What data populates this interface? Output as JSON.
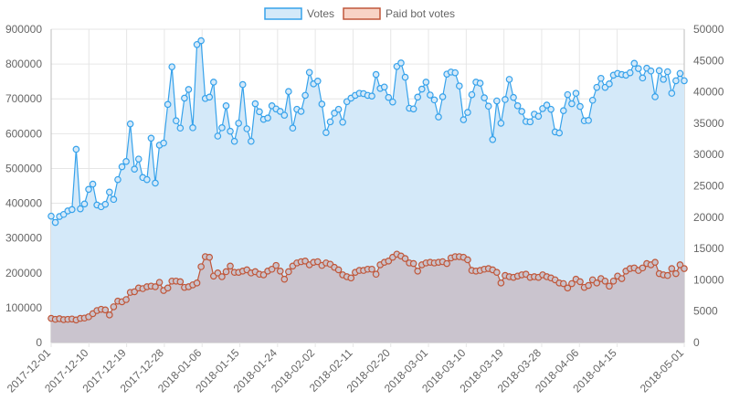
{
  "chart_data": {
    "type": "line",
    "x_dates": {
      "first": "2017-12-01",
      "last": "2018-05-01",
      "tick_labels": [
        "2017-12-01",
        "2017-12-10",
        "2017-12-19",
        "2017-12-28",
        "2018-01-06",
        "2018-01-15",
        "2018-01-24",
        "2018-02-02",
        "2018-02-11",
        "2018-02-20",
        "2018-03-01",
        "2018-03-10",
        "2018-03-19",
        "2018-03-28",
        "2018-04-06",
        "2018-04-15",
        "2018-05-01"
      ]
    },
    "y_left": {
      "min": 0,
      "max": 900000,
      "ticks": [
        0,
        100000,
        200000,
        300000,
        400000,
        500000,
        600000,
        700000,
        800000,
        900000
      ]
    },
    "y_right": {
      "min": 0,
      "max": 50000,
      "ticks": [
        0,
        5000,
        10000,
        15000,
        20000,
        25000,
        30000,
        35000,
        40000,
        45000,
        50000
      ]
    },
    "grid": true,
    "legend_position": "top",
    "series": [
      {
        "name": "Votes",
        "axis": "left",
        "line_color": "#36a2eb",
        "fill_color": "#d4e9f9",
        "values": [
          363000,
          345000,
          362000,
          368000,
          378000,
          382000,
          555000,
          384000,
          398000,
          440000,
          455000,
          395000,
          390000,
          397000,
          432000,
          411000,
          468000,
          505000,
          520000,
          628000,
          498000,
          527000,
          474000,
          468000,
          587000,
          458000,
          567000,
          573000,
          684000,
          792000,
          637000,
          616000,
          702000,
          727000,
          617000,
          856000,
          867000,
          701000,
          705000,
          748000,
          593000,
          617000,
          680000,
          607000,
          578000,
          630000,
          741000,
          614000,
          578000,
          686000,
          663000,
          641000,
          645000,
          680000,
          671000,
          664000,
          653000,
          721000,
          616000,
          670000,
          664000,
          710000,
          776000,
          743000,
          751000,
          685000,
          603000,
          634000,
          659000,
          670000,
          633000,
          692000,
          702000,
          710000,
          716000,
          715000,
          710000,
          708000,
          770000,
          730000,
          734000,
          704000,
          691000,
          793000,
          803000,
          762000,
          673000,
          671000,
          705000,
          728000,
          748000,
          711000,
          697000,
          648000,
          706000,
          771000,
          777000,
          775000,
          737000,
          640000,
          661000,
          712000,
          748000,
          745000,
          703000,
          679000,
          583000,
          694000,
          630000,
          698000,
          756000,
          704000,
          680000,
          664000,
          635000,
          634000,
          656000,
          650000,
          672000,
          682000,
          670000,
          605000,
          602000,
          666000,
          712000,
          686000,
          716000,
          678000,
          637000,
          638000,
          696000,
          733000,
          759000,
          733000,
          743000,
          768000,
          773000,
          770000,
          768000,
          775000,
          802000,
          787000,
          760000,
          788000,
          780000,
          706000,
          781000,
          756000,
          778000,
          716000,
          752000,
          773000,
          752000
        ]
      },
      {
        "name": "Paid bot votes",
        "axis": "right",
        "line_color": "#c0573a",
        "fill_color": "#c9c2cb",
        "values": [
          3850,
          3700,
          3800,
          3650,
          3700,
          3750,
          3600,
          3850,
          3900,
          4100,
          4600,
          5100,
          5300,
          5200,
          4400,
          5700,
          6600,
          6500,
          6850,
          8000,
          8100,
          8700,
          8600,
          8900,
          9000,
          8900,
          9600,
          8300,
          8700,
          9800,
          9800,
          9700,
          8800,
          8900,
          9200,
          9500,
          12100,
          13700,
          13600,
          10600,
          11100,
          10500,
          11300,
          12200,
          11200,
          11200,
          11400,
          11600,
          11100,
          11300,
          10900,
          10800,
          11400,
          11700,
          12300,
          11400,
          10100,
          11300,
          12200,
          12700,
          12900,
          13000,
          12400,
          12800,
          12900,
          12300,
          12700,
          12500,
          12000,
          11600,
          10800,
          10500,
          10300,
          11200,
          11500,
          11500,
          11700,
          11700,
          10900,
          12400,
          12800,
          13000,
          13600,
          14100,
          13800,
          13400,
          12700,
          12600,
          11400,
          12400,
          12700,
          12800,
          12700,
          12800,
          12900,
          12600,
          13500,
          13700,
          13700,
          13600,
          13200,
          11500,
          11400,
          11500,
          11700,
          11800,
          11600,
          11200,
          9500,
          10700,
          10500,
          10400,
          10600,
          10800,
          10900,
          10400,
          10500,
          10400,
          10800,
          10500,
          10300,
          10000,
          9500,
          9400,
          8700,
          9400,
          10100,
          9700,
          8800,
          9100,
          10000,
          9500,
          10200,
          9800,
          9000,
          9800,
          10600,
          10200,
          11400,
          11800,
          11900,
          11500,
          11900,
          12600,
          12400,
          12800,
          11000,
          10800,
          10700,
          11800,
          11000,
          12400,
          11800
        ]
      }
    ]
  }
}
